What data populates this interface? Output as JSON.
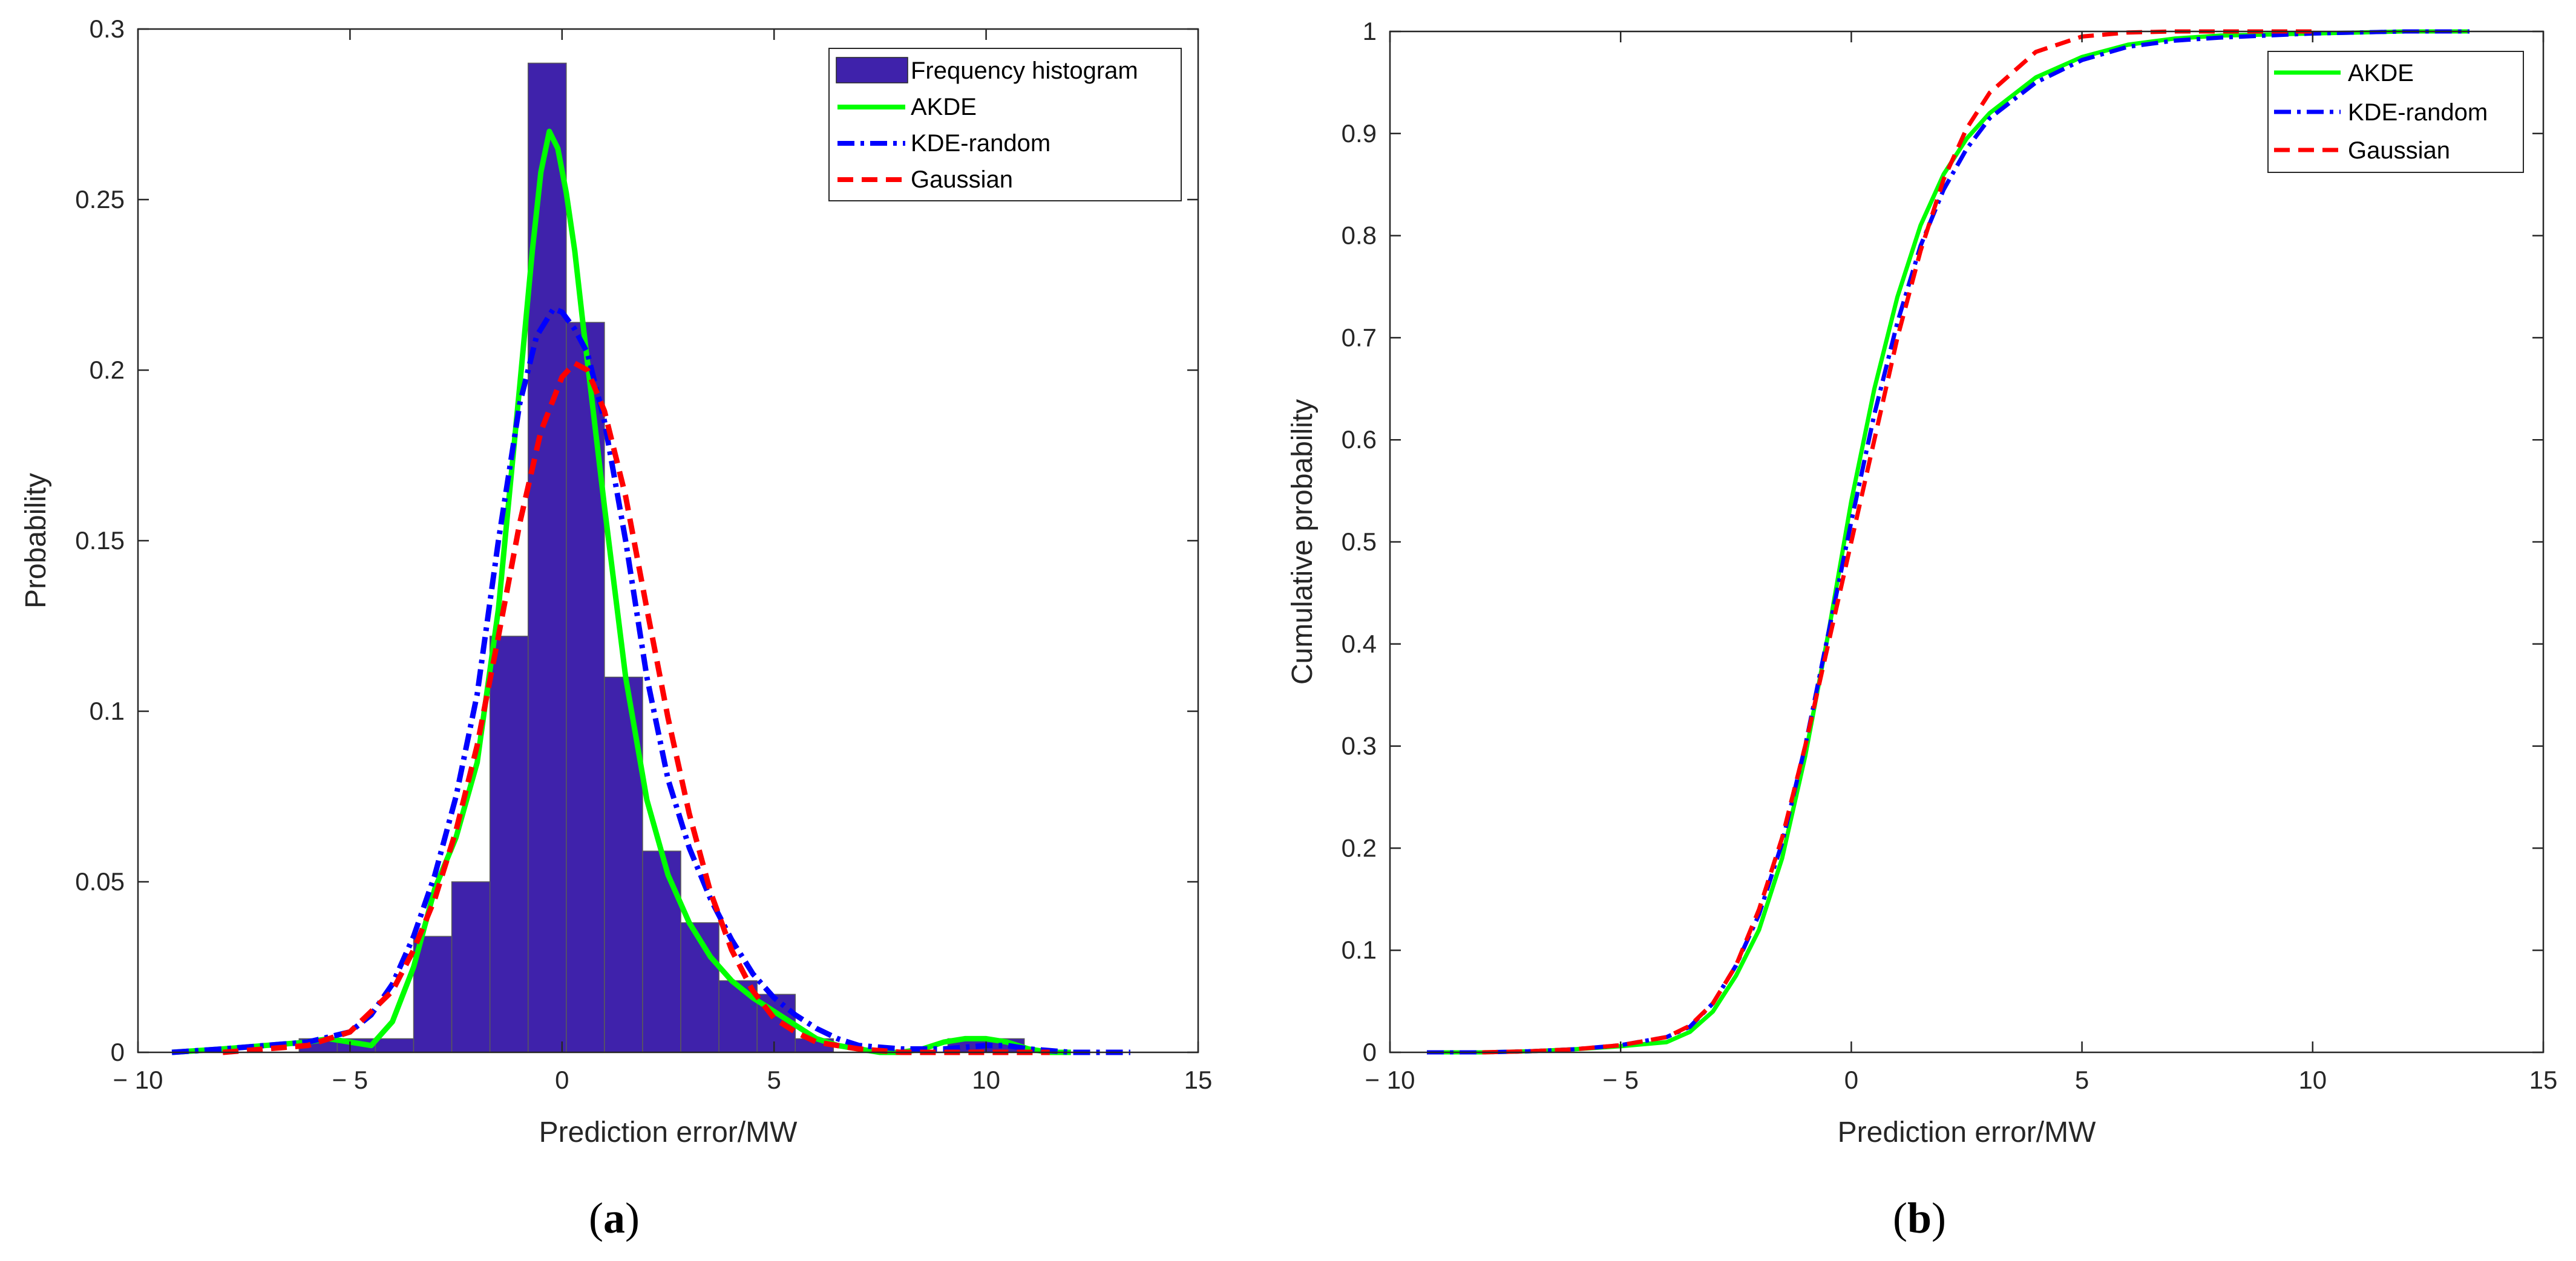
{
  "colors": {
    "bar_fill": "#3f22ab",
    "bar_edge": "#5a5a5a",
    "akde": "#00ff00",
    "kde_random": "#0000ff",
    "gaussian": "#ff0000",
    "axis": "#262626"
  },
  "captions": {
    "a": {
      "open": "(",
      "letter": "a",
      "close": ")"
    },
    "b": {
      "open": "(",
      "letter": "b",
      "close": ")"
    }
  },
  "chart_data": [
    {
      "id": "a",
      "type": "bar",
      "title": "",
      "xlabel": "Prediction error/MW",
      "ylabel": "Probability",
      "xlim": [
        -10,
        15
      ],
      "ylim": [
        0,
        0.3
      ],
      "xticks": [
        -10,
        -5,
        0,
        5,
        10,
        15
      ],
      "xtick_labels": [
        "− 10",
        "− 5",
        "0",
        "5",
        "10",
        "15"
      ],
      "yticks": [
        0,
        0.05,
        0.1,
        0.15,
        0.2,
        0.25,
        0.3
      ],
      "ytick_labels": [
        "0",
        "0.05",
        "0.1",
        "0.15",
        "0.2",
        "0.25",
        "0.3"
      ],
      "legend_position": "top-right",
      "histogram": {
        "name": "Frequency histogram",
        "bin_edges": [
          -6.2,
          -5.3,
          -4.4,
          -3.5,
          -2.6,
          -1.7,
          -0.8,
          0.1,
          1.0,
          1.9,
          2.8,
          3.7,
          4.6,
          5.5,
          6.4,
          7.3,
          8.2,
          9.1,
          10.0,
          10.9,
          11.8
        ],
        "values": [
          0.004,
          0.004,
          0.004,
          0.034,
          0.05,
          0.122,
          0.29,
          0.214,
          0.11,
          0.059,
          0.038,
          0.021,
          0.017,
          0.004,
          0.0,
          0.0,
          0.0,
          0.004,
          0.004,
          0.0
        ]
      },
      "series": [
        {
          "name": "AKDE",
          "style": "solid",
          "x": [
            -9.2,
            -8,
            -7,
            -6,
            -5.5,
            -5,
            -4.5,
            -4,
            -3.5,
            -3,
            -2.5,
            -2,
            -1.5,
            -1,
            -0.7,
            -0.5,
            -0.3,
            -0.1,
            0.1,
            0.3,
            0.5,
            1,
            1.5,
            2,
            2.5,
            3,
            3.5,
            4,
            4.5,
            5,
            5.5,
            6,
            6.5,
            7,
            7.5,
            8,
            8.5,
            9,
            9.5,
            10,
            10.5,
            11,
            11.5,
            12
          ],
          "y": [
            0,
            0.001,
            0.002,
            0.003,
            0.004,
            0.003,
            0.002,
            0.009,
            0.025,
            0.048,
            0.063,
            0.085,
            0.13,
            0.195,
            0.235,
            0.258,
            0.27,
            0.265,
            0.252,
            0.235,
            0.213,
            0.16,
            0.11,
            0.074,
            0.052,
            0.038,
            0.028,
            0.021,
            0.016,
            0.012,
            0.008,
            0.004,
            0.002,
            0.001,
            0,
            0,
            0.001,
            0.003,
            0.004,
            0.004,
            0.003,
            0.001,
            0,
            0
          ]
        },
        {
          "name": "KDE-random",
          "style": "dashdot",
          "x": [
            -9.2,
            -8,
            -7,
            -6,
            -5,
            -4.5,
            -4,
            -3.5,
            -3,
            -2.5,
            -2,
            -1.5,
            -1,
            -0.6,
            -0.2,
            0,
            0.3,
            0.6,
            1,
            1.5,
            2,
            2.5,
            3,
            3.5,
            4,
            4.5,
            5,
            5.5,
            6,
            6.5,
            7,
            8,
            9,
            10,
            10.5,
            11,
            12,
            13.4
          ],
          "y": [
            0,
            0.001,
            0.002,
            0.003,
            0.006,
            0.011,
            0.02,
            0.034,
            0.052,
            0.075,
            0.105,
            0.15,
            0.19,
            0.21,
            0.218,
            0.217,
            0.212,
            0.205,
            0.185,
            0.15,
            0.11,
            0.08,
            0.06,
            0.045,
            0.033,
            0.023,
            0.016,
            0.011,
            0.007,
            0.004,
            0.002,
            0.001,
            0.001,
            0.002,
            0.002,
            0.001,
            0,
            0
          ]
        },
        {
          "name": "Gaussian",
          "style": "dashed",
          "x": [
            -8,
            -7,
            -6,
            -5,
            -4,
            -3.5,
            -3,
            -2.5,
            -2,
            -1.5,
            -1,
            -0.5,
            0,
            0.3,
            0.6,
            1,
            1.5,
            2,
            2.5,
            3,
            3.5,
            4,
            4.5,
            5,
            5.5,
            6,
            7,
            8,
            9,
            10,
            11.5
          ],
          "y": [
            0,
            0.001,
            0.002,
            0.006,
            0.018,
            0.03,
            0.045,
            0.065,
            0.09,
            0.122,
            0.155,
            0.182,
            0.198,
            0.202,
            0.2,
            0.188,
            0.163,
            0.13,
            0.098,
            0.07,
            0.047,
            0.03,
            0.018,
            0.01,
            0.006,
            0.003,
            0.001,
            0,
            0,
            0,
            0
          ]
        }
      ]
    },
    {
      "id": "b",
      "type": "line",
      "title": "",
      "xlabel": "Prediction error/MW",
      "ylabel": "Cumulative probability",
      "xlim": [
        -10,
        15
      ],
      "ylim": [
        0,
        1
      ],
      "xticks": [
        -10,
        -5,
        0,
        5,
        10,
        15
      ],
      "xtick_labels": [
        "− 10",
        "− 5",
        "0",
        "5",
        "10",
        "15"
      ],
      "yticks": [
        0,
        0.1,
        0.2,
        0.3,
        0.4,
        0.5,
        0.6,
        0.7,
        0.8,
        0.9,
        1
      ],
      "ytick_labels": [
        "0",
        "0.1",
        "0.2",
        "0.3",
        "0.4",
        "0.5",
        "0.6",
        "0.7",
        "0.8",
        "0.9",
        "1"
      ],
      "legend_position": "top-right",
      "series": [
        {
          "name": "AKDE",
          "style": "solid",
          "x": [
            -9.2,
            -8,
            -7,
            -6,
            -5,
            -4,
            -3.5,
            -3,
            -2.5,
            -2,
            -1.5,
            -1,
            -0.5,
            0,
            0.5,
            1,
            1.5,
            2,
            2.5,
            3,
            4,
            5,
            6,
            7,
            8,
            9,
            10,
            11,
            12,
            13.4
          ],
          "y": [
            0,
            0,
            0.001,
            0.003,
            0.006,
            0.01,
            0.02,
            0.04,
            0.075,
            0.12,
            0.19,
            0.29,
            0.41,
            0.54,
            0.65,
            0.74,
            0.81,
            0.86,
            0.895,
            0.92,
            0.955,
            0.975,
            0.987,
            0.993,
            0.996,
            0.997,
            0.998,
            0.999,
            1,
            1
          ]
        },
        {
          "name": "KDE-random",
          "style": "dashdot",
          "x": [
            -9.2,
            -8,
            -7,
            -6,
            -5,
            -4,
            -3.5,
            -3,
            -2.5,
            -2,
            -1.5,
            -1,
            -0.5,
            0,
            0.5,
            1,
            1.5,
            2,
            2.5,
            3,
            4,
            5,
            6,
            7,
            8,
            9,
            10,
            11,
            12,
            13.4
          ],
          "y": [
            0,
            0,
            0.001,
            0.003,
            0.007,
            0.015,
            0.025,
            0.048,
            0.085,
            0.135,
            0.205,
            0.3,
            0.41,
            0.52,
            0.625,
            0.715,
            0.79,
            0.845,
            0.885,
            0.915,
            0.95,
            0.972,
            0.985,
            0.991,
            0.994,
            0.996,
            0.998,
            0.999,
            1,
            1
          ]
        },
        {
          "name": "Gaussian",
          "style": "dashed",
          "x": [
            -8,
            -7,
            -6,
            -5,
            -4,
            -3.5,
            -3,
            -2.5,
            -2,
            -1.5,
            -1,
            -0.5,
            0,
            0.5,
            1,
            1.5,
            2,
            2.5,
            3,
            4,
            5,
            6,
            7,
            8,
            9,
            10
          ],
          "y": [
            0,
            0.001,
            0.003,
            0.007,
            0.015,
            0.026,
            0.048,
            0.085,
            0.14,
            0.21,
            0.3,
            0.4,
            0.5,
            0.6,
            0.7,
            0.785,
            0.855,
            0.905,
            0.94,
            0.98,
            0.995,
            0.999,
            1,
            1,
            1,
            1
          ]
        }
      ]
    }
  ]
}
